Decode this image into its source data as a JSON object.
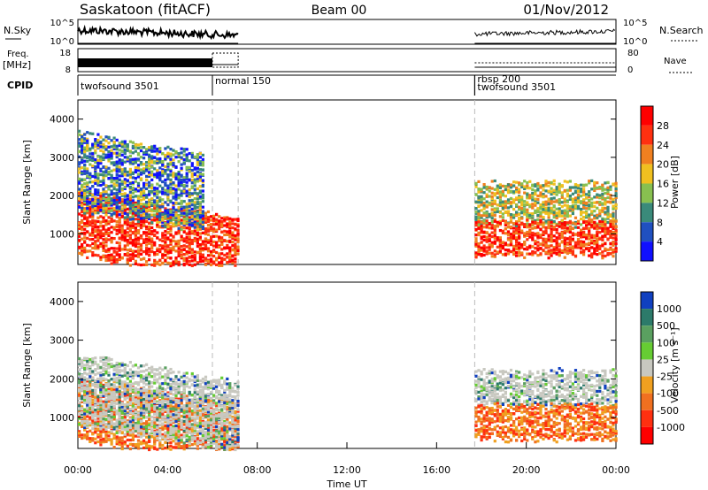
{
  "header": {
    "station": "Saskatoon (fitACF)",
    "beam": "Beam 00",
    "date": "01/Nov/2012"
  },
  "nsky": {
    "label": "N.Sky",
    "ticks": [
      "10^5",
      "10^0"
    ],
    "right_label": "N.Search"
  },
  "freq": {
    "label1": "Freq.",
    "label2": "[MHz]",
    "ticks": [
      "18",
      "8"
    ],
    "right_ticks": [
      "80",
      "0"
    ],
    "right_label": "Nave"
  },
  "cpid": {
    "label": "CPID",
    "segments": [
      {
        "name": "twofsound 3501",
        "start_h": 0.0,
        "end_h": 6.0
      },
      {
        "name": "normal 150",
        "start_h": 6.0,
        "end_h": 7.15
      },
      {
        "name": "rbsp 200",
        "start_h": 17.7,
        "end_h": 24.0
      },
      {
        "name": "twofsound 3501",
        "start_h": 17.7,
        "end_h": 24.0
      }
    ]
  },
  "axes": {
    "ylabel": "Slant Range [km]",
    "xlabel": "Time UT",
    "xticks": [
      "00:00",
      "04:00",
      "08:00",
      "12:00",
      "16:00",
      "20:00",
      "00:00"
    ],
    "yticks": [
      "1000",
      "2000",
      "3000",
      "4000"
    ]
  },
  "chart_data": [
    {
      "type": "heatmap",
      "parameter": "power",
      "colorbar_label": "Power [dB]",
      "colorbar_ticks": [
        "4",
        "8",
        "12",
        "16",
        "20",
        "24",
        "28"
      ],
      "colors": [
        "#1010ff",
        "#2050c0",
        "#3a8a7a",
        "#88c050",
        "#f0c020",
        "#f08020",
        "#ff3010",
        "#ff0000"
      ],
      "xlim_h": [
        0,
        24
      ],
      "ylim_km": [
        200,
        4500
      ],
      "observing_periods_h": [
        [
          0,
          7.15
        ],
        [
          17.7,
          24.0
        ]
      ],
      "echo_regions": [
        {
          "t0": 0.0,
          "t1": 7.1,
          "r0": 400,
          "r1": 2100,
          "level": "high"
        },
        {
          "t0": 0.0,
          "t1": 5.6,
          "r0": 1600,
          "r1": 3600,
          "level": "low"
        },
        {
          "t0": 17.7,
          "t1": 24.0,
          "r0": 1200,
          "r1": 2300,
          "level": "mid"
        },
        {
          "t0": 17.7,
          "t1": 24.0,
          "r0": 400,
          "r1": 1300,
          "level": "high"
        }
      ]
    },
    {
      "type": "heatmap",
      "parameter": "velocity",
      "colorbar_label": "Velocity [m s⁻¹]",
      "colorbar_ticks": [
        "1000",
        "500",
        "100",
        "25",
        "-25",
        "-100",
        "-500",
        "-1000"
      ],
      "colors": [
        "#1040c0",
        "#2c7a6a",
        "#5aa060",
        "#66cc33",
        "#c8c8c0",
        "#f0a020",
        "#f07020",
        "#ff3010",
        "#ff0000"
      ],
      "xlim_h": [
        0,
        24
      ],
      "ylim_km": [
        200,
        4500
      ],
      "observing_periods_h": [
        [
          0,
          7.15
        ],
        [
          17.7,
          24.0
        ]
      ],
      "echo_regions": [
        {
          "t0": 0.0,
          "t1": 7.1,
          "r0": 400,
          "r1": 2000,
          "level": "negative"
        },
        {
          "t0": 0.0,
          "t1": 7.1,
          "r0": 800,
          "r1": 2600,
          "level": "near-zero"
        },
        {
          "t0": 17.7,
          "t1": 24.0,
          "r0": 1300,
          "r1": 2200,
          "level": "near-zero"
        },
        {
          "t0": 17.7,
          "t1": 24.0,
          "r0": 400,
          "r1": 1300,
          "level": "negative"
        }
      ]
    }
  ]
}
